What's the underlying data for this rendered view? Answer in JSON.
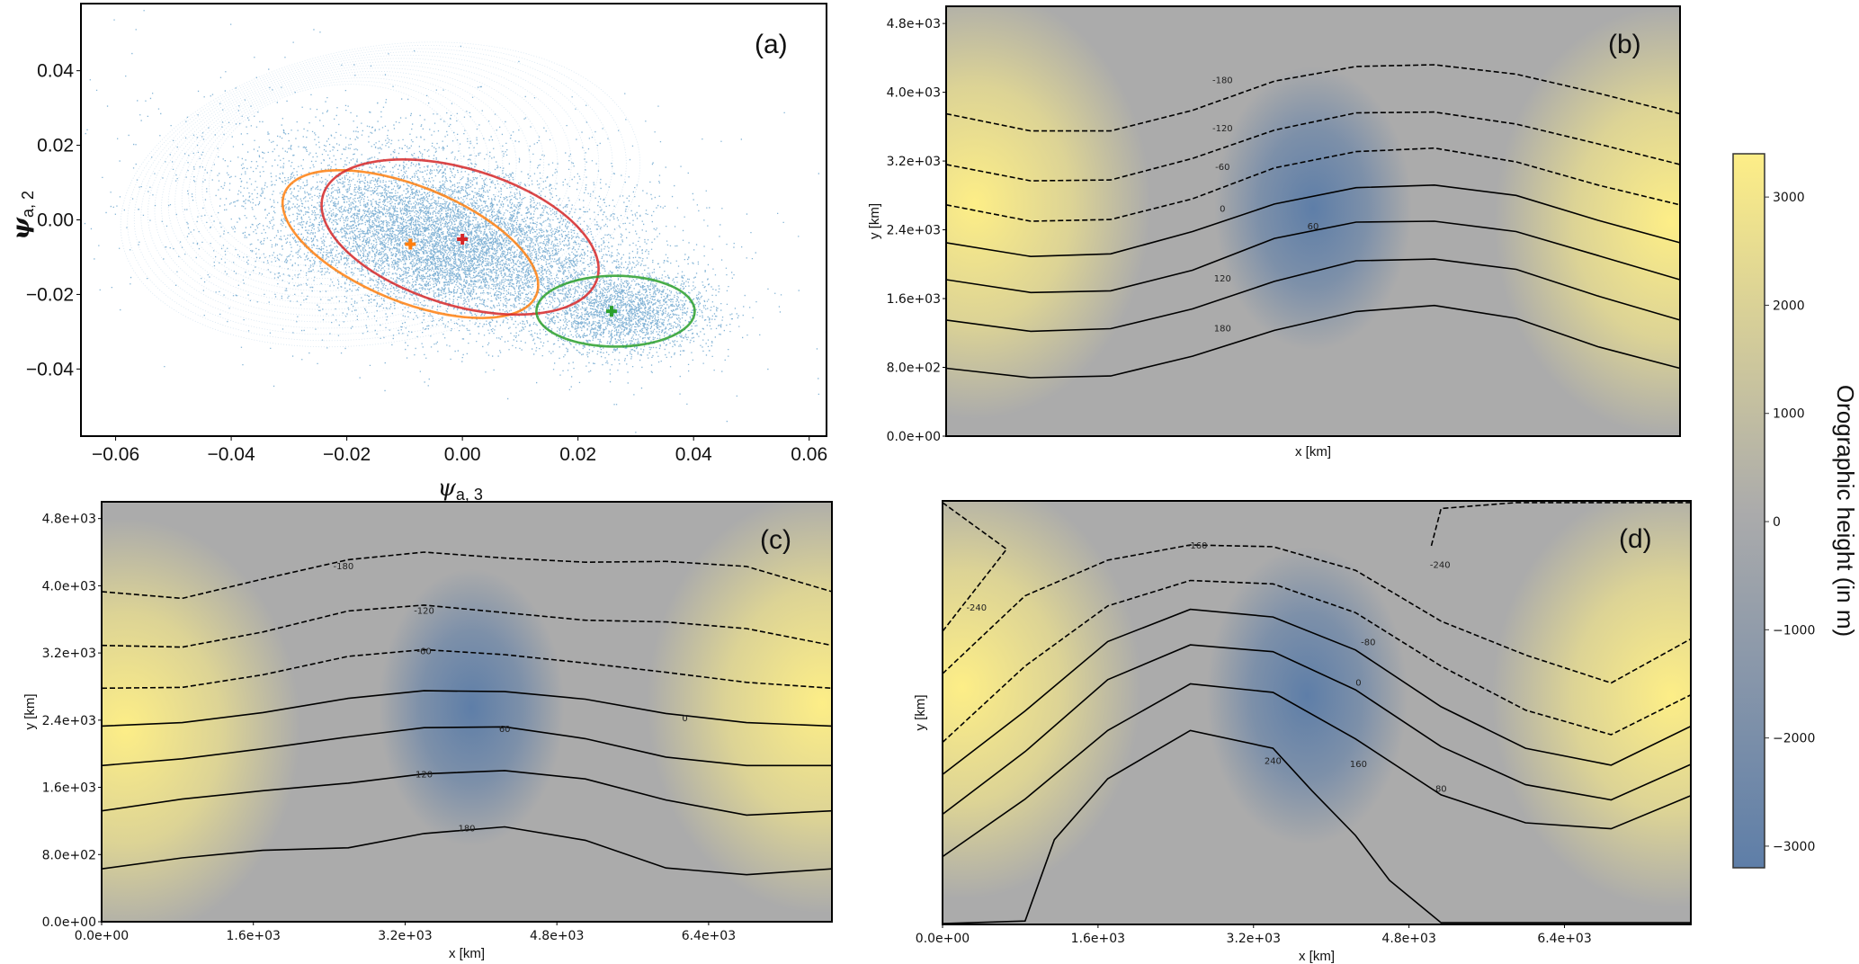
{
  "figure": {
    "colorbar": {
      "label": "Orographic height (in m)",
      "range": [
        -3200,
        3400
      ],
      "ticks": [
        3000,
        2000,
        1000,
        0,
        -1000,
        -2000,
        -3000
      ],
      "tick_labels": [
        "3000",
        "2000",
        "1000",
        "0",
        "−1000",
        "−2000",
        "−3000"
      ],
      "colors": {
        "high": "#fdee87",
        "mid": "#ababab",
        "low": "#5e7ea8"
      }
    }
  },
  "chart_data": [
    {
      "id": "a",
      "type": "scatter",
      "panel_label": "(a)",
      "xlabel": "ψa, 3",
      "xlabel_main": "ψ",
      "xlabel_sub": "a, 3",
      "ylabel_main": "ψ",
      "ylabel_sub": "a, 2",
      "xlim": [
        -0.066,
        0.063
      ],
      "ylim": [
        -0.058,
        0.058
      ],
      "xticks": [
        -0.06,
        -0.04,
        -0.02,
        0.0,
        0.02,
        0.04,
        0.06
      ],
      "xtick_labels": [
        "−0.06",
        "−0.04",
        "−0.02",
        "0.00",
        "0.02",
        "0.04",
        "0.06"
      ],
      "yticks": [
        0.04,
        0.02,
        0.0,
        -0.02,
        -0.04
      ],
      "ytick_labels": [
        "0.04",
        "0.02",
        "0.00",
        "−0.02",
        "−0.04"
      ],
      "scatter_color": "#1f77b4",
      "cloud": {
        "description": "dense trajectory point cloud",
        "center": [
          -0.002,
          -0.006
        ],
        "extent_x": [
          -0.058,
          0.056
        ],
        "extent_y": [
          -0.05,
          0.054
        ]
      },
      "clusters": [
        {
          "name": "orange",
          "color": "#ff7f0e",
          "center": [
            -0.009,
            -0.0065
          ],
          "ellipse": {
            "center": [
              -0.009,
              -0.0065
            ],
            "rx": 0.0235,
            "ry": 0.0155,
            "angle_deg": -22
          }
        },
        {
          "name": "red",
          "color": "#d62728",
          "center": [
            0.0,
            -0.0052
          ],
          "ellipse": {
            "center": [
              -0.0004,
              -0.0046
            ],
            "rx": 0.0248,
            "ry": 0.0183,
            "angle_deg": -17
          }
        },
        {
          "name": "green",
          "color": "#2ca02c",
          "center": [
            0.0258,
            -0.0245
          ],
          "ellipse": {
            "center": [
              0.0265,
              -0.0245
            ],
            "rx": 0.0137,
            "ry": 0.0095,
            "angle_deg": 0
          }
        }
      ]
    },
    {
      "id": "b",
      "type": "heatmap",
      "panel_label": "(b)",
      "xlabel": "x [km]",
      "ylabel": "y [km]",
      "xlim": [
        0,
        7700
      ],
      "ylim": [
        0,
        5000
      ],
      "xticks": [],
      "xtick_labels": [],
      "yticks": [
        0,
        800,
        1600,
        2400,
        3200,
        4000,
        4800
      ],
      "ytick_labels": [
        "0.0e+00",
        "8.0e+02",
        "1.6e+03",
        "2.4e+03",
        "3.2e+03",
        "4.0e+03",
        "4.8e+03"
      ],
      "field": {
        "low_center": [
          3850,
          2650
        ],
        "low_radius": [
          900,
          1500
        ],
        "high_left": [
          300,
          2700
        ],
        "high_right": [
          7600,
          2500
        ]
      },
      "contours": [
        {
          "level": -180,
          "label": "-180",
          "dashed": true,
          "label_at": [
            2900,
            4150
          ],
          "x": [
            0,
            887,
            1726,
            2585,
            3444,
            4302,
            5123,
            5981,
            6840,
            7698
          ],
          "y": [
            3750,
            3550,
            3550,
            3790,
            4130,
            4300,
            4320,
            4210,
            3990,
            3750
          ]
        },
        {
          "level": -120,
          "label": "-120",
          "dashed": true,
          "label_at": [
            2900,
            3590
          ],
          "x": [
            0,
            887,
            1726,
            2585,
            3444,
            4302,
            5123,
            5981,
            6840,
            7698
          ],
          "y": [
            3160,
            2970,
            2980,
            3230,
            3560,
            3760,
            3770,
            3630,
            3400,
            3160
          ]
        },
        {
          "level": -60,
          "label": "-60",
          "dashed": true,
          "label_at": [
            2900,
            3140
          ],
          "x": [
            0,
            887,
            1726,
            2585,
            3444,
            4302,
            5123,
            5981,
            6840,
            7698
          ],
          "y": [
            2690,
            2500,
            2520,
            2760,
            3120,
            3310,
            3350,
            3190,
            2920,
            2690
          ]
        },
        {
          "level": 0,
          "label": "0",
          "dashed": false,
          "label_at": [
            2900,
            2650
          ],
          "x": [
            0,
            887,
            1726,
            2585,
            3444,
            4302,
            5123,
            5981,
            6840,
            7698
          ],
          "y": [
            2250,
            2090,
            2120,
            2380,
            2700,
            2890,
            2920,
            2800,
            2510,
            2250
          ]
        },
        {
          "level": 60,
          "label": "60",
          "dashed": false,
          "label_at": [
            3850,
            2450
          ],
          "x": [
            0,
            887,
            1726,
            2585,
            3444,
            4302,
            5123,
            5981,
            6840,
            7698
          ],
          "y": [
            1820,
            1670,
            1690,
            1930,
            2300,
            2490,
            2500,
            2380,
            2100,
            1820
          ]
        },
        {
          "level": 120,
          "label": "120",
          "dashed": false,
          "label_at": [
            2900,
            1840
          ],
          "x": [
            0,
            887,
            1726,
            2585,
            3444,
            4302,
            5123,
            5981,
            6840,
            7698
          ],
          "y": [
            1350,
            1220,
            1250,
            1480,
            1800,
            2040,
            2060,
            1940,
            1630,
            1350
          ]
        },
        {
          "level": 180,
          "label": "180",
          "dashed": false,
          "label_at": [
            2900,
            1260
          ],
          "x": [
            0,
            887,
            1726,
            2585,
            3444,
            4302,
            5123,
            5981,
            6840,
            7698
          ],
          "y": [
            790,
            680,
            700,
            930,
            1230,
            1450,
            1520,
            1370,
            1040,
            790
          ]
        }
      ]
    },
    {
      "id": "c",
      "type": "heatmap",
      "panel_label": "(c)",
      "xlabel": "x [km]",
      "ylabel": "y [km]",
      "xlim": [
        0,
        7700
      ],
      "ylim": [
        0,
        5000
      ],
      "xticks": [
        0,
        1600,
        3200,
        4800,
        6400
      ],
      "xtick_labels": [
        "0.0e+00",
        "1.6e+03",
        "3.2e+03",
        "4.8e+03",
        "6.4e+03"
      ],
      "yticks": [
        0,
        800,
        1600,
        2400,
        3200,
        4000,
        4800
      ],
      "ytick_labels": [
        "0.0e+00",
        "8.0e+02",
        "1.6e+03",
        "2.4e+03",
        "3.2e+03",
        "4.0e+03",
        "4.8e+03"
      ],
      "field": {
        "low_center": [
          3900,
          2550
        ],
        "low_radius": [
          850,
          1500
        ],
        "high_left": [
          250,
          2300
        ],
        "high_right": [
          7600,
          2600
        ]
      },
      "contours": [
        {
          "level": -180,
          "label": "-180",
          "dashed": true,
          "label_at": [
            2550,
            4240
          ],
          "x": [
            0,
            850,
            1700,
            2600,
            3400,
            4250,
            5100,
            5950,
            6800,
            7700
          ],
          "y": [
            3930,
            3850,
            4080,
            4310,
            4400,
            4330,
            4280,
            4290,
            4230,
            3930
          ]
        },
        {
          "level": -120,
          "label": "-120",
          "dashed": true,
          "label_at": [
            3400,
            3710
          ],
          "x": [
            0,
            850,
            1700,
            2600,
            3400,
            4250,
            5100,
            5950,
            6800,
            7700
          ],
          "y": [
            3290,
            3270,
            3450,
            3700,
            3770,
            3680,
            3590,
            3570,
            3490,
            3290
          ]
        },
        {
          "level": -60,
          "label": "-60",
          "dashed": true,
          "label_at": [
            3400,
            3230
          ],
          "x": [
            0,
            850,
            1700,
            2600,
            3400,
            4250,
            5100,
            5950,
            6800,
            7700
          ],
          "y": [
            2780,
            2790,
            2940,
            3160,
            3240,
            3180,
            3080,
            2970,
            2850,
            2780
          ]
        },
        {
          "level": 0,
          "label": "0",
          "dashed": false,
          "label_at": [
            6150,
            2430
          ],
          "x": [
            0,
            850,
            1700,
            2600,
            3400,
            4250,
            5100,
            5950,
            6800,
            7700
          ],
          "y": [
            2330,
            2370,
            2490,
            2660,
            2750,
            2740,
            2650,
            2480,
            2370,
            2330
          ]
        },
        {
          "level": 60,
          "label": "60",
          "dashed": false,
          "label_at": [
            4250,
            2300
          ],
          "x": [
            0,
            850,
            1700,
            2600,
            3400,
            4250,
            5100,
            5950,
            6800,
            7700
          ],
          "y": [
            1860,
            1940,
            2060,
            2200,
            2310,
            2320,
            2180,
            1960,
            1860,
            1860
          ]
        },
        {
          "level": 120,
          "label": "120",
          "dashed": false,
          "label_at": [
            3400,
            1760
          ],
          "x": [
            0,
            850,
            1700,
            2600,
            3400,
            4250,
            5100,
            5950,
            6800,
            7700
          ],
          "y": [
            1320,
            1460,
            1560,
            1650,
            1760,
            1800,
            1700,
            1450,
            1270,
            1320
          ]
        },
        {
          "level": 180,
          "label": "180",
          "dashed": false,
          "label_at": [
            3850,
            1120
          ],
          "x": [
            0,
            850,
            1700,
            2600,
            3400,
            4250,
            5100,
            5950,
            6800,
            7700
          ],
          "y": [
            630,
            760,
            850,
            880,
            1050,
            1130,
            970,
            640,
            560,
            630
          ]
        }
      ]
    },
    {
      "id": "d",
      "type": "heatmap",
      "panel_label": "(d)",
      "xlabel": "x [km]",
      "ylabel": "y [km]",
      "xlim": [
        0,
        7700
      ],
      "ylim": [
        0,
        5000
      ],
      "xticks": [
        0,
        1600,
        3200,
        4800,
        6400
      ],
      "xtick_labels": [
        "0.0e+00",
        "1.6e+03",
        "3.2e+03",
        "4.8e+03",
        "6.4e+03"
      ],
      "yticks": [],
      "ytick_labels": [],
      "field": {
        "low_center": [
          3750,
          2700
        ],
        "low_radius": [
          900,
          1600
        ],
        "high_left": [
          200,
          2800
        ],
        "high_right": [
          7500,
          2700
        ]
      },
      "contours": [
        {
          "level": -240,
          "label": "-240",
          "dashed": true,
          "label_at": [
            350,
            3750
          ],
          "x": [
            0,
            660,
            0
          ],
          "y": [
            4980,
            4430,
            3460
          ]
        },
        {
          "level": -240,
          "label": "-240",
          "dashed": true,
          "label_at": [
            5120,
            4250
          ],
          "x": [
            5030,
            5130,
            5900,
            7700
          ],
          "y": [
            4470,
            4910,
            4980,
            4980
          ]
        },
        {
          "level": -160,
          "label": "-160",
          "dashed": true,
          "label_at": [
            2620,
            4480
          ],
          "x": [
            0,
            850,
            1700,
            2550,
            3400,
            4250,
            5130,
            6000,
            6880,
            7700
          ],
          "y": [
            2960,
            3880,
            4300,
            4480,
            4460,
            4180,
            3580,
            3180,
            2850,
            3370
          ]
        },
        {
          "level": -80,
          "label": "-80",
          "dashed": true,
          "label_at": [
            4380,
            3340
          ],
          "x": [
            0,
            850,
            1700,
            2550,
            3400,
            4250,
            5130,
            6000,
            6880,
            7700
          ],
          "y": [
            2150,
            3050,
            3760,
            4060,
            4020,
            3680,
            3050,
            2530,
            2240,
            2710
          ]
        },
        {
          "level": 0,
          "label": "0",
          "dashed": false,
          "label_at": [
            4280,
            2860
          ],
          "x": [
            0,
            850,
            1700,
            2550,
            3400,
            4250,
            5130,
            6000,
            6880,
            7700
          ],
          "y": [
            1770,
            2520,
            3340,
            3720,
            3630,
            3240,
            2570,
            2080,
            1880,
            2340
          ]
        },
        {
          "level": 80,
          "label": "80",
          "dashed": false,
          "label_at": [
            5130,
            1610
          ],
          "x": [
            0,
            850,
            1700,
            2550,
            3400,
            4250,
            5130,
            6000,
            6880,
            7700
          ],
          "y": [
            1300,
            2040,
            2890,
            3300,
            3220,
            2770,
            2100,
            1650,
            1470,
            1890
          ]
        },
        {
          "level": 160,
          "label": "160",
          "dashed": false,
          "label_at": [
            4280,
            1900
          ],
          "x": [
            0,
            850,
            1700,
            2550,
            3400,
            4250,
            5130,
            6000,
            6880,
            7700
          ],
          "y": [
            800,
            1480,
            2290,
            2840,
            2740,
            2190,
            1530,
            1200,
            1130,
            1520
          ]
        },
        {
          "level": 240,
          "label": "240",
          "dashed": false,
          "label_at": [
            3400,
            1940
          ],
          "x": [
            0,
            850,
            1150,
            1700,
            2550,
            3400,
            3800,
            4250,
            4600,
            5130,
            7700
          ],
          "y": [
            10,
            40,
            1000,
            1720,
            2290,
            2080,
            1580,
            1050,
            520,
            20,
            20
          ]
        }
      ]
    }
  ]
}
